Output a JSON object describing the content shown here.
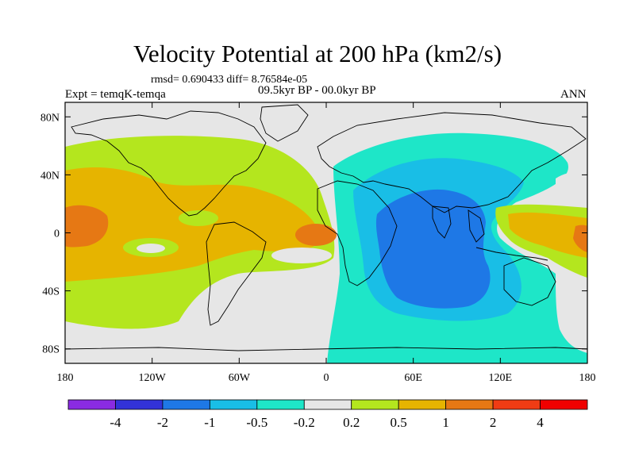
{
  "figure": {
    "title": "Velocity Potential at 200 hPa (km2/s)",
    "stats": "rmsd= 0.690433  diff= 8.76584e-05",
    "period": "09.5kyr BP - 00.0kyr BP",
    "experiment": "Expt = temqK-temqa",
    "season": "ANN"
  },
  "map": {
    "projection": "cylindrical-equidistant",
    "lon_range": [
      -180,
      180
    ],
    "lat_range": [
      -90,
      90
    ],
    "x_ticks": [
      {
        "lon": -180,
        "label": "180"
      },
      {
        "lon": -120,
        "label": "120W"
      },
      {
        "lon": -60,
        "label": "60W"
      },
      {
        "lon": 0,
        "label": "0"
      },
      {
        "lon": 60,
        "label": "60E"
      },
      {
        "lon": 120,
        "label": "120E"
      },
      {
        "lon": 180,
        "label": "180"
      }
    ],
    "y_ticks": [
      {
        "lat": 80,
        "label": "80N"
      },
      {
        "lat": 40,
        "label": "40N"
      },
      {
        "lat": 0,
        "label": "0"
      },
      {
        "lat": -40,
        "label": "40S"
      },
      {
        "lat": -80,
        "label": "80S"
      }
    ],
    "field_summary": {
      "positive_center_lon_lat": [
        [
          -170,
          5
        ],
        [
          -5,
          2
        ],
        [
          180,
          -2
        ],
        [
          130,
          5
        ]
      ],
      "negative_center_lon_lat": [
        [
          80,
          -20
        ]
      ],
      "max_approx": 2,
      "min_approx": -1
    }
  },
  "colorbar": {
    "boundaries": [
      "-4",
      "-2",
      "-1",
      "-0.5",
      "-0.2",
      "0.2",
      "0.5",
      "1",
      "2",
      "4"
    ],
    "colors": [
      "#8a2be2",
      "#3232d8",
      "#1e78e6",
      "#19bee6",
      "#1ee6c8",
      "#e6e6e6",
      "#b4e61e",
      "#e6b400",
      "#e67814",
      "#f03c14",
      "#f00000"
    ]
  }
}
